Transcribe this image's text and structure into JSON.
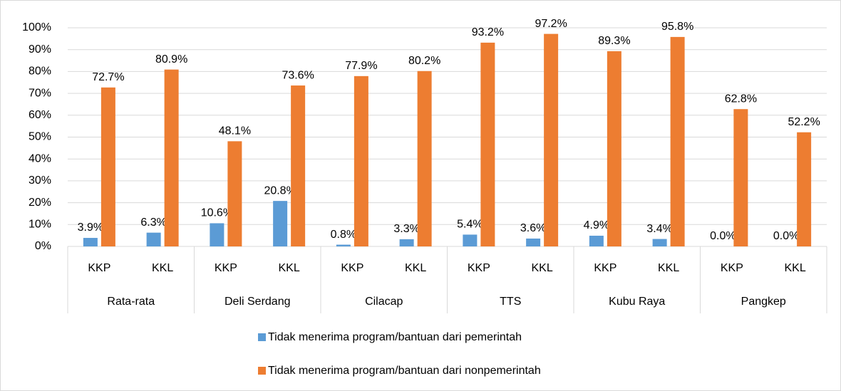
{
  "chart_data": {
    "type": "bar",
    "categories": [
      "KKP",
      "KKL",
      "KKP",
      "KKL",
      "KKP",
      "KKL",
      "KKP",
      "KKL",
      "KKP",
      "KKL",
      "KKP",
      "KKL"
    ],
    "groups": [
      "Rata-rata",
      "Deli Serdang",
      "Cilacap",
      "TTS",
      "Kubu Raya",
      "Pangkep"
    ],
    "series": [
      {
        "name": "Tidak menerima program/bantuan dari pemerintah",
        "color": "#5b9bd5",
        "values": [
          3.9,
          6.3,
          10.6,
          20.8,
          0.8,
          3.3,
          5.4,
          3.6,
          4.9,
          3.4,
          0.0,
          0.0
        ],
        "value_labels": [
          "3.9%",
          "6.3%",
          "10.6%",
          "20.8%",
          "0.8%",
          "3.3%",
          "5.4%",
          "3.6%",
          "4.9%",
          "3.4%",
          "0.0%",
          "0.0%"
        ]
      },
      {
        "name": "Tidak menerima program/bantuan dari nonpemerintah",
        "color": "#ed7d31",
        "values": [
          72.7,
          80.9,
          48.1,
          73.6,
          77.9,
          80.2,
          93.2,
          97.2,
          89.3,
          95.8,
          62.8,
          52.2
        ],
        "value_labels": [
          "72.7%",
          "80.9%",
          "48.1%",
          "73.6%",
          "77.9%",
          "80.2%",
          "93.2%",
          "97.2%",
          "89.3%",
          "95.8%",
          "62.8%",
          "52.2%"
        ]
      }
    ],
    "ylim": [
      0,
      100
    ],
    "yticks": [
      {
        "value": 0,
        "label": "0%"
      },
      {
        "value": 10,
        "label": "10%"
      },
      {
        "value": 20,
        "label": "20%"
      },
      {
        "value": 30,
        "label": "30%"
      },
      {
        "value": 40,
        "label": "40%"
      },
      {
        "value": 50,
        "label": "50%"
      },
      {
        "value": 60,
        "label": "60%"
      },
      {
        "value": 70,
        "label": "70%"
      },
      {
        "value": 80,
        "label": "80%"
      },
      {
        "value": 90,
        "label": "90%"
      },
      {
        "value": 100,
        "label": "100%"
      }
    ],
    "grid": true,
    "legend": "bottom"
  }
}
